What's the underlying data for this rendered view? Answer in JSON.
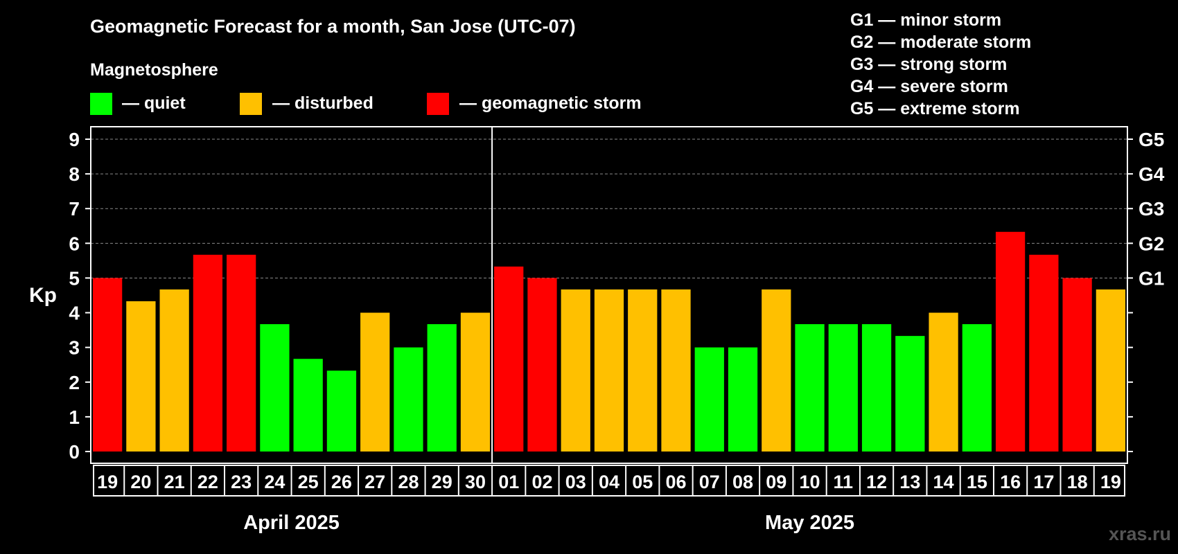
{
  "chart_data": {
    "type": "bar",
    "title": "Geomagnetic Forecast for a month, San Jose (UTC-07)",
    "ylabel": "Kp",
    "ylim": [
      0,
      9
    ],
    "yticks": [
      "0",
      "1",
      "2",
      "3",
      "4",
      "5",
      "6",
      "7",
      "8",
      "9"
    ],
    "right_axis_labels": [
      {
        "value": 5,
        "label": "G1"
      },
      {
        "value": 6,
        "label": "G2"
      },
      {
        "value": 7,
        "label": "G3"
      },
      {
        "value": 8,
        "label": "G4"
      },
      {
        "value": 9,
        "label": "G5"
      }
    ],
    "legend": {
      "heading": "Magnetosphere",
      "items": [
        {
          "label": "— quiet",
          "color": "#00ff00"
        },
        {
          "label": "— disturbed",
          "color": "#ffc000"
        },
        {
          "label": "— geomagnetic storm",
          "color": "#ff0000"
        }
      ]
    },
    "storm_scale": [
      "G1 — minor storm",
      "G2 — moderate storm",
      "G3 — strong storm",
      "G4 — severe storm",
      "G5 — extreme storm"
    ],
    "months": [
      {
        "label": "April 2025",
        "count": 12
      },
      {
        "label": "May 2025",
        "count": 19
      }
    ],
    "categories": [
      "19",
      "20",
      "21",
      "22",
      "23",
      "24",
      "25",
      "26",
      "27",
      "28",
      "29",
      "30",
      "01",
      "02",
      "03",
      "04",
      "05",
      "06",
      "07",
      "08",
      "09",
      "10",
      "11",
      "12",
      "13",
      "14",
      "15",
      "16",
      "17",
      "18",
      "19"
    ],
    "values": [
      5.0,
      4.33,
      4.67,
      5.67,
      5.67,
      3.67,
      2.67,
      2.33,
      4.0,
      3.0,
      3.67,
      4.0,
      5.33,
      5.0,
      4.67,
      4.67,
      4.67,
      4.67,
      3.0,
      3.0,
      4.67,
      3.67,
      3.67,
      3.67,
      3.33,
      4.0,
      3.67,
      6.33,
      5.67,
      5.0,
      4.67
    ],
    "levels": [
      "storm",
      "disturbed",
      "disturbed",
      "storm",
      "storm",
      "quiet",
      "quiet",
      "quiet",
      "disturbed",
      "quiet",
      "quiet",
      "disturbed",
      "storm",
      "storm",
      "disturbed",
      "disturbed",
      "disturbed",
      "disturbed",
      "quiet",
      "quiet",
      "disturbed",
      "quiet",
      "quiet",
      "quiet",
      "quiet",
      "disturbed",
      "quiet",
      "storm",
      "storm",
      "storm",
      "disturbed"
    ],
    "level_colors": {
      "quiet": "#00ff00",
      "disturbed": "#ffc000",
      "storm": "#ff0000"
    },
    "watermark": "xras.ru"
  }
}
